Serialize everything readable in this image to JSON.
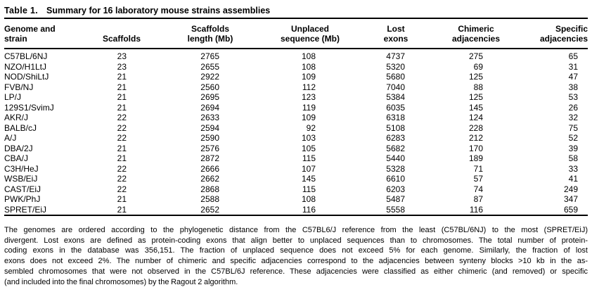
{
  "table": {
    "label": "Table 1.",
    "title": "Summary for 16 laboratory mouse strains assemblies",
    "columns": [
      {
        "lines": [
          "Genome and",
          "strain"
        ]
      },
      {
        "lines": [
          "Scaffolds"
        ]
      },
      {
        "lines": [
          "Scaffolds",
          "length (Mb)"
        ]
      },
      {
        "lines": [
          "Unplaced",
          "sequence (Mb)"
        ]
      },
      {
        "lines": [
          "Lost",
          "exons"
        ]
      },
      {
        "lines": [
          "Chimeric",
          "adjacencies"
        ]
      },
      {
        "lines": [
          "Specific",
          "adjacencies"
        ]
      }
    ],
    "rows": [
      [
        "C57BL/6NJ",
        "23",
        "2765",
        "108",
        "4737",
        "275",
        "65"
      ],
      [
        "NZO/H1LtJ",
        "23",
        "2655",
        "108",
        "5320",
        "69",
        "31"
      ],
      [
        "NOD/ShiLtJ",
        "21",
        "2922",
        "109",
        "5680",
        "125",
        "47"
      ],
      [
        "FVB/NJ",
        "21",
        "2560",
        "112",
        "7040",
        "88",
        "38"
      ],
      [
        "LP/J",
        "21",
        "2695",
        "123",
        "5384",
        "125",
        "53"
      ],
      [
        "129S1/SvimJ",
        "21",
        "2694",
        "119",
        "6035",
        "145",
        "26"
      ],
      [
        "AKR/J",
        "22",
        "2633",
        "109",
        "6318",
        "124",
        "32"
      ],
      [
        "BALB/cJ",
        "22",
        "2594",
        "92",
        "5108",
        "228",
        "75"
      ],
      [
        "A/J",
        "22",
        "2590",
        "103",
        "6283",
        "212",
        "52"
      ],
      [
        "DBA/2J",
        "21",
        "2576",
        "105",
        "5682",
        "170",
        "39"
      ],
      [
        "CBA/J",
        "21",
        "2872",
        "115",
        "5440",
        "189",
        "58"
      ],
      [
        "C3H/HeJ",
        "22",
        "2666",
        "107",
        "5328",
        "71",
        "33"
      ],
      [
        "WSB/EiJ",
        "22",
        "2662",
        "145",
        "6610",
        "57",
        "41"
      ],
      [
        "CAST/EiJ",
        "22",
        "2868",
        "115",
        "6203",
        "74",
        "249"
      ],
      [
        "PWK/PhJ",
        "21",
        "2588",
        "108",
        "5487",
        "87",
        "347"
      ],
      [
        "SPRET/EiJ",
        "21",
        "2652",
        "116",
        "5558",
        "116",
        "659"
      ]
    ]
  },
  "footnote": {
    "lines": [
      "The genomes are ordered according to the phylogenetic distance from the C57BL6/J reference from the least (C57BL/6NJ) to the most (SPRET/EiJ)",
      "divergent. Lost exons are defined as protein-coding exons that align better to unplaced sequences than to chromosomes. The total number of protein-",
      "coding exons in the database was 356,151. The fraction of unplaced sequence does not exceed 5% for each genome. Similarly, the fraction of lost",
      "exons does not exceed 2%. The number of chimeric and specific adjacencies correspond to the adjacencies between synteny blocks >10 kb in the as-",
      "sembled chromosomes that were not observed in the C57BL/6J reference. These adjacencies were classified as either chimeric (and removed) or specific",
      "(and included into the final chromosomes) by the Ragout 2 algorithm."
    ]
  },
  "colors": {
    "text": "#000000",
    "background": "#ffffff",
    "rule": "#000000"
  }
}
